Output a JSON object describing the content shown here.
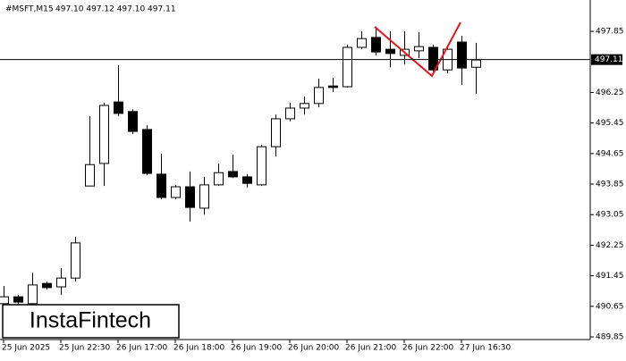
{
  "chart_data": {
    "type": "candlestick",
    "title": "#MSFT,M15",
    "subtitle": "497.10 497.12 497.10 497.11",
    "logo": "InstaFintech",
    "categories": [
      "25 Jun 2025",
      null,
      null,
      null,
      "25 Jun 22:30",
      null,
      null,
      null,
      "26 Jun 17:00",
      null,
      null,
      null,
      "26 Jun 18:00",
      null,
      null,
      null,
      "26 Jun 19:00",
      null,
      null,
      null,
      "26 Jun 20:00",
      null,
      null,
      null,
      "26 Jun 21:00",
      null,
      null,
      null,
      "26 Jun 22:00",
      null,
      null,
      null,
      "27 Jun 16:30",
      null
    ],
    "open": [
      490.72,
      490.9,
      490.72,
      491.25,
      491.16,
      491.39,
      493.8,
      494.39,
      496.0,
      495.75,
      495.28,
      494.11,
      493.5,
      493.78,
      493.22,
      493.83,
      494.18,
      494.04,
      493.83,
      494.83,
      495.56,
      495.84,
      495.96,
      496.42,
      496.4,
      497.43,
      497.69,
      497.38,
      497.22,
      497.34,
      497.43,
      496.84,
      497.57,
      496.91
    ],
    "high": [
      491.18,
      490.95,
      491.53,
      491.3,
      491.65,
      492.47,
      495.63,
      495.98,
      496.96,
      495.81,
      495.39,
      494.65,
      493.83,
      494.18,
      494.04,
      494.39,
      494.62,
      494.11,
      494.88,
      495.67,
      495.98,
      496.14,
      496.61,
      496.63,
      497.5,
      497.85,
      497.97,
      497.85,
      497.85,
      497.83,
      497.5,
      497.43,
      497.73,
      497.55
    ],
    "low": [
      490.6,
      490.67,
      490.6,
      491.09,
      490.95,
      491.3,
      493.8,
      493.8,
      495.63,
      495.16,
      494.08,
      493.45,
      493.45,
      492.87,
      493.05,
      493.8,
      494.01,
      493.76,
      493.8,
      494.57,
      495.49,
      495.67,
      495.86,
      496.26,
      496.38,
      497.38,
      497.22,
      496.91,
      496.98,
      497.15,
      496.8,
      496.75,
      496.45,
      496.21
    ],
    "close": [
      490.9,
      490.76,
      491.21,
      491.14,
      491.39,
      492.31,
      494.36,
      495.91,
      495.7,
      495.23,
      494.13,
      493.5,
      493.78,
      493.24,
      493.83,
      494.15,
      494.04,
      493.87,
      494.83,
      495.56,
      495.84,
      495.96,
      496.38,
      496.38,
      497.43,
      497.66,
      497.31,
      497.27,
      497.38,
      497.45,
      496.84,
      497.38,
      496.89,
      497.1
    ],
    "up_color": "#ffffff",
    "down_color": "#000000",
    "current_price": 497.11,
    "ylim": [
      489.78,
      498.67
    ],
    "yticks": [
      497.85,
      496.25,
      495.45,
      494.65,
      493.85,
      493.05,
      492.25,
      491.45,
      490.65,
      489.85
    ]
  }
}
